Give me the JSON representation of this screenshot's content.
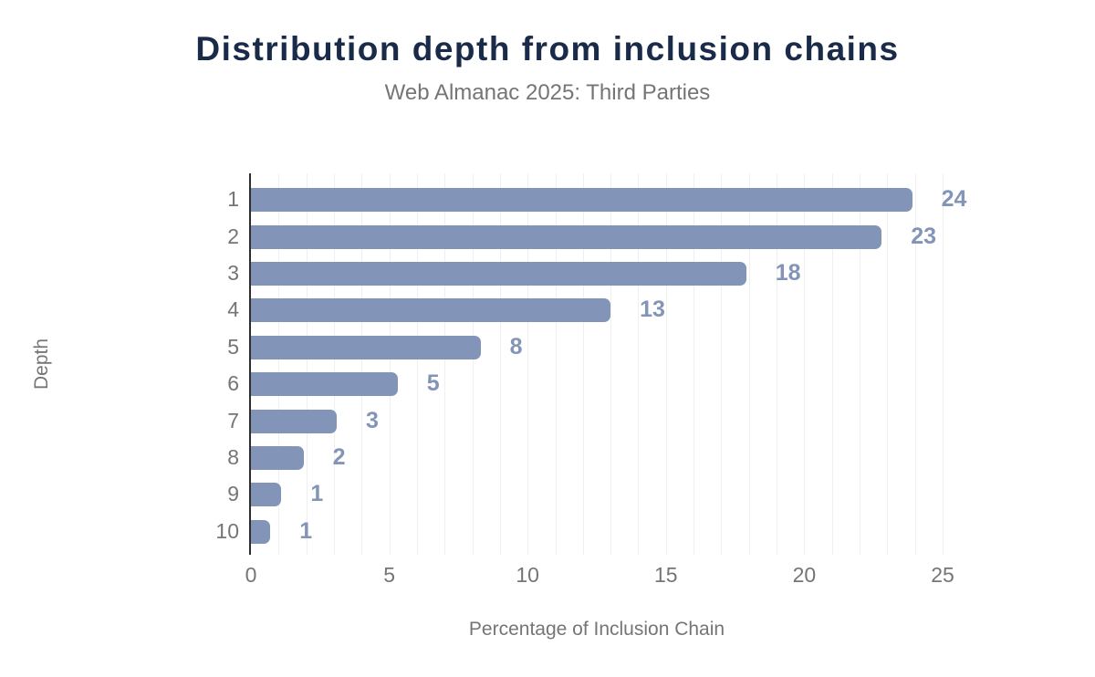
{
  "chart_data": {
    "type": "bar",
    "orientation": "horizontal",
    "title": "Distribution depth from inclusion chains",
    "subtitle": "Web Almanac 2025: Third Parties",
    "xlabel": "Percentage of Inclusion Chain",
    "ylabel": "Depth",
    "categories": [
      "1",
      "2",
      "3",
      "4",
      "5",
      "6",
      "7",
      "8",
      "9",
      "10"
    ],
    "values": [
      23.9,
      22.8,
      17.9,
      13.0,
      8.3,
      5.3,
      3.1,
      1.9,
      1.1,
      0.7
    ],
    "value_labels": [
      "24",
      "23",
      "18",
      "13",
      "8",
      "5",
      "3",
      "2",
      "1",
      "1"
    ],
    "xlim": [
      0,
      25
    ],
    "x_ticks": [
      0,
      5,
      10,
      15,
      20,
      25
    ],
    "grid": {
      "vertical": true,
      "step": 1,
      "horizontal": false
    },
    "legend": "none",
    "colors": {
      "bar": "#8295b8",
      "value_label": "#8295b8",
      "title": "#1a2b49",
      "subtitle": "#757575",
      "axis_text": "#757575",
      "axis_line": "#2d2d2d",
      "gridline": "#efefef",
      "background": "#ffffff"
    }
  }
}
